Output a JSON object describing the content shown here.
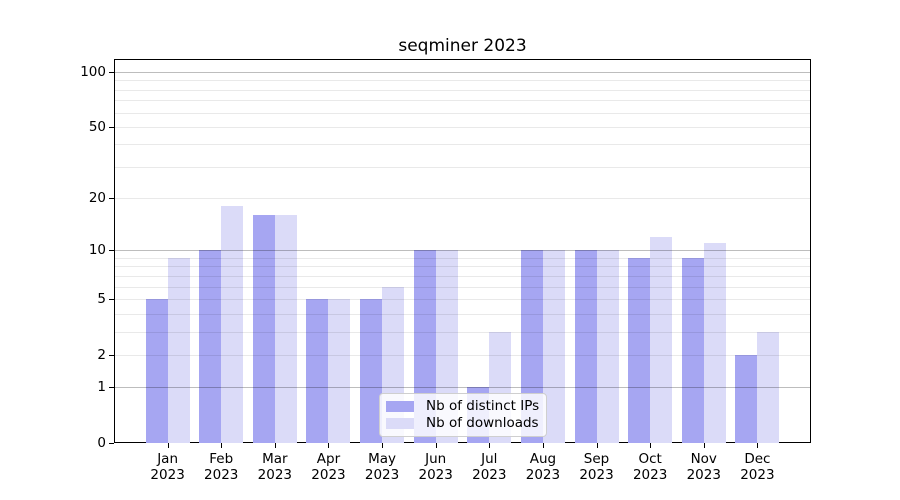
{
  "chart_data": {
    "type": "bar",
    "title": "seqminer 2023",
    "categories": [
      "Jan 2023",
      "Feb 2023",
      "Mar 2023",
      "Apr 2023",
      "May 2023",
      "Jun 2023",
      "Jul 2023",
      "Aug 2023",
      "Sep 2023",
      "Oct 2023",
      "Nov 2023",
      "Dec 2023"
    ],
    "series": [
      {
        "name": "Nb of distinct IPs",
        "color": "#a6a6f2",
        "values": [
          5,
          10,
          16,
          5,
          5,
          10,
          1,
          10,
          10,
          9,
          9,
          2
        ]
      },
      {
        "name": "Nb of downloads",
        "color": "#dbdbf8",
        "values": [
          9,
          18,
          16,
          5,
          6,
          10,
          3,
          10,
          10,
          12,
          11,
          3
        ]
      }
    ],
    "xlabel": "",
    "ylabel": "",
    "yticks": [
      100,
      50,
      20,
      10,
      5,
      2,
      1,
      0
    ],
    "y_scale": "log10(1+value), 0 at baseline",
    "ylim": [
      0,
      118
    ],
    "grid": true,
    "major_gridlines": [
      1,
      10,
      100
    ],
    "minor_gridlines": [
      2,
      3,
      4,
      5,
      6,
      7,
      8,
      9,
      20,
      30,
      40,
      50,
      60,
      70,
      80,
      90
    ],
    "legend_position": "bottom-center"
  }
}
